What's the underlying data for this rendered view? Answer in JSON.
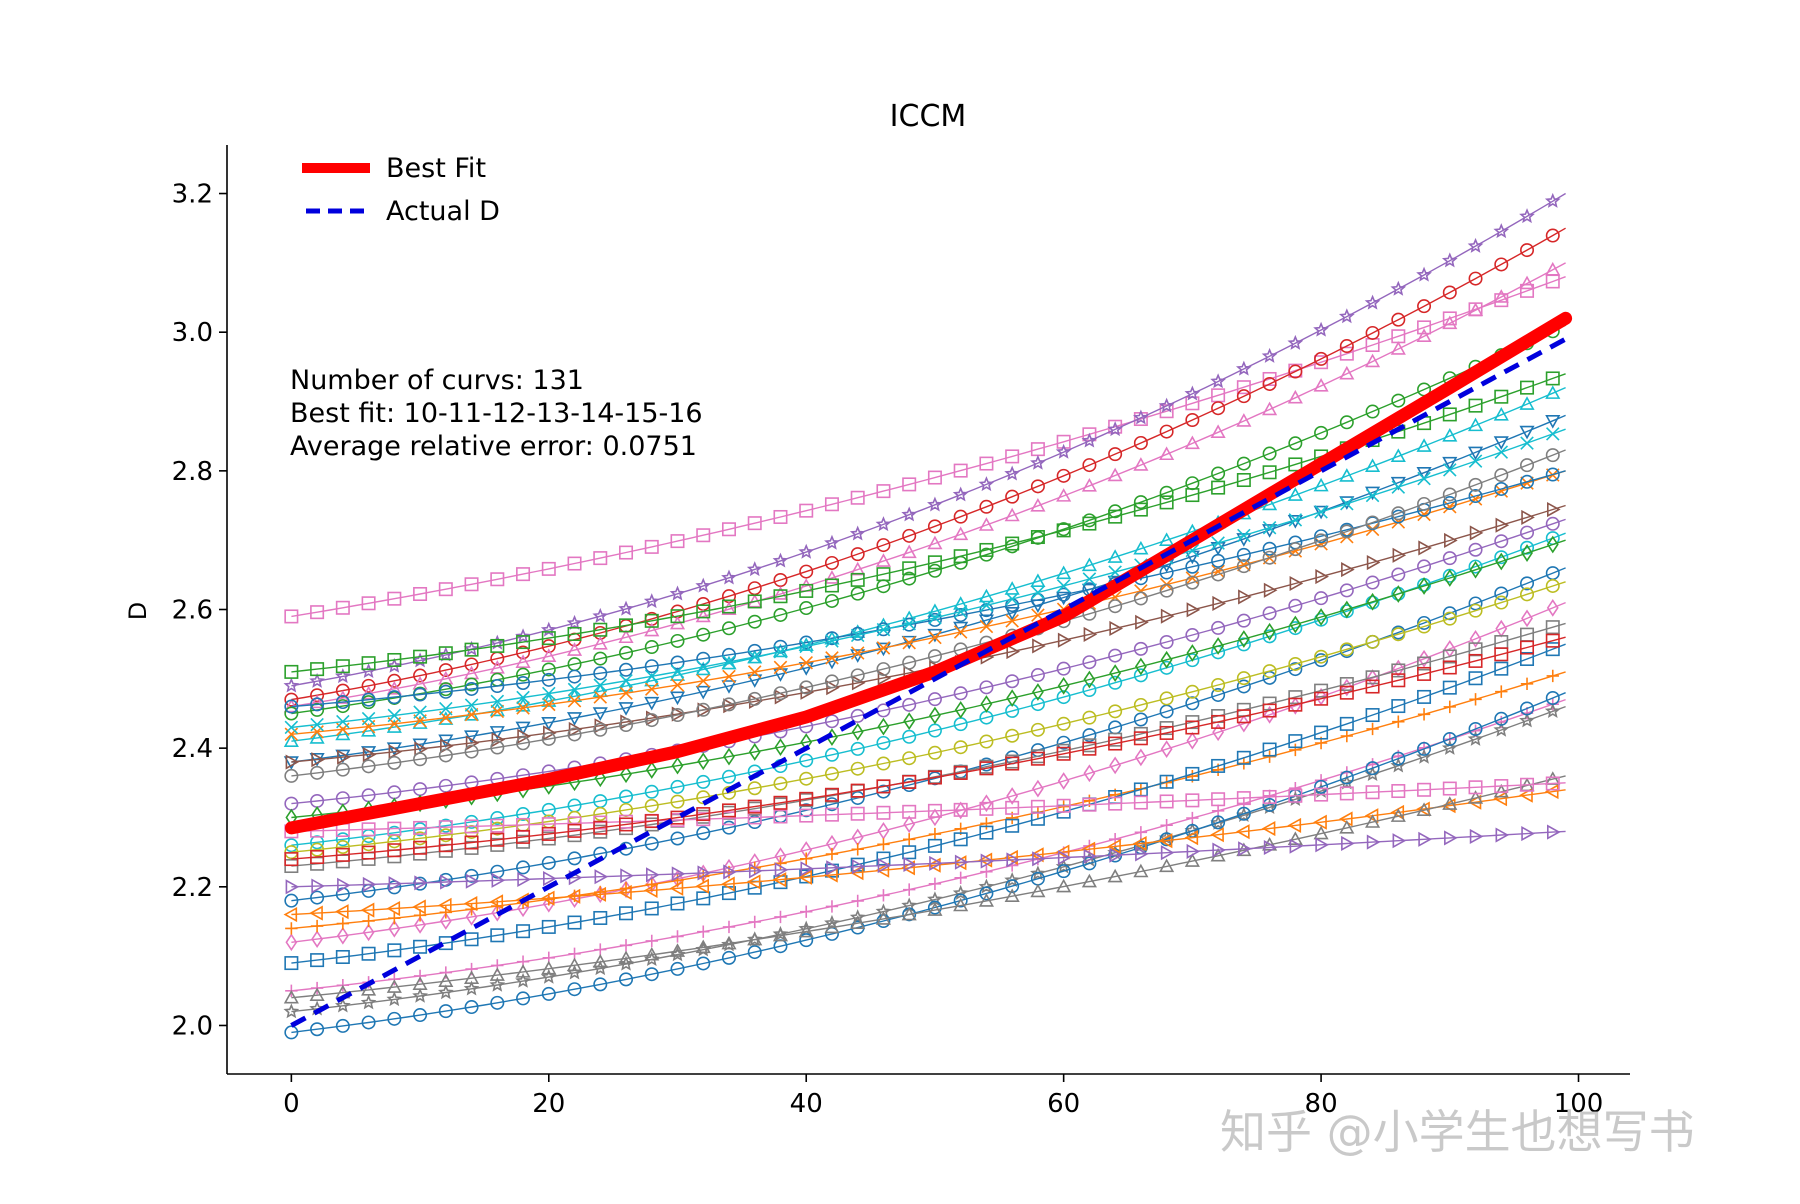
{
  "chart_data": {
    "type": "line",
    "title": "ICCM",
    "xlabel": "",
    "ylabel": "D",
    "xlim": [
      -5,
      104
    ],
    "ylim": [
      1.93,
      3.27
    ],
    "xticks": [
      0,
      20,
      40,
      60,
      80,
      100
    ],
    "yticks": [
      2.0,
      2.2,
      2.4,
      2.6,
      2.8,
      3.0,
      3.2
    ],
    "xtick_labels": [
      "0",
      "20",
      "40",
      "60",
      "80",
      "100"
    ],
    "ytick_labels": [
      "2.0",
      "2.2",
      "2.4",
      "2.6",
      "2.8",
      "3.0",
      "3.2"
    ],
    "x_range": [
      0,
      99
    ],
    "grid": false,
    "legend_position": "top-left",
    "legend": [
      {
        "label": "Best Fit",
        "color": "#ff0000",
        "style": "solid"
      },
      {
        "label": "Actual D",
        "color": "#0000dd",
        "style": "dashed"
      }
    ],
    "annotation_lines": [
      "Number of curvs: 131",
      "Best fit: 10-11-12-13-14-15-16",
      "Average relative error: 0.0751"
    ],
    "highlight_series": [
      {
        "name": "Best Fit",
        "color": "#ff0000",
        "x": [
          0,
          10,
          20,
          30,
          40,
          50,
          60,
          70,
          80,
          90,
          99
        ],
        "y": [
          2.285,
          2.32,
          2.355,
          2.395,
          2.445,
          2.51,
          2.59,
          2.7,
          2.81,
          2.92,
          3.02
        ]
      },
      {
        "name": "Actual D",
        "color": "#0000dd",
        "x": [
          0,
          10,
          20,
          30,
          40,
          50,
          60,
          70,
          80,
          90,
          99
        ],
        "y": [
          2.0,
          2.1,
          2.2,
          2.3,
          2.4,
          2.5,
          2.6,
          2.7,
          2.8,
          2.9,
          2.99
        ]
      }
    ],
    "series": [
      {
        "name": "c01",
        "color": "#e377c2",
        "marker": "square",
        "y0": 2.59,
        "y1": 3.08,
        "curve": 0.7
      },
      {
        "name": "c02",
        "color": "#9467bd",
        "marker": "star",
        "y0": 2.49,
        "y1": 3.2,
        "curve": 1.0
      },
      {
        "name": "c03",
        "color": "#d62728",
        "marker": "circle",
        "y0": 2.47,
        "y1": 3.15,
        "curve": 1.0
      },
      {
        "name": "c04",
        "color": "#e377c2",
        "marker": "triangle-up",
        "y0": 2.46,
        "y1": 3.1,
        "curve": 1.0
      },
      {
        "name": "c05",
        "color": "#2ca02c",
        "marker": "square",
        "y0": 2.51,
        "y1": 2.94,
        "curve": 1.0
      },
      {
        "name": "c06",
        "color": "#2ca02c",
        "marker": "circle",
        "y0": 2.45,
        "y1": 3.01,
        "curve": 1.0
      },
      {
        "name": "c07",
        "color": "#17becf",
        "marker": "triangle-up",
        "y0": 2.41,
        "y1": 2.92,
        "curve": 1.0
      },
      {
        "name": "c08",
        "color": "#1f77b4",
        "marker": "triangle-down",
        "y0": 2.38,
        "y1": 2.88,
        "curve": 1.0
      },
      {
        "name": "c09",
        "color": "#8c564b",
        "marker": "triangle-right",
        "y0": 2.38,
        "y1": 2.75,
        "curve": 1.0
      },
      {
        "name": "c10",
        "color": "#ff7f0e",
        "marker": "x",
        "y0": 2.42,
        "y1": 2.8,
        "curve": 1.0
      },
      {
        "name": "c11",
        "color": "#1f77b4",
        "marker": "circle",
        "y0": 2.46,
        "y1": 2.8,
        "curve": 1.0
      },
      {
        "name": "c12",
        "color": "#7f7f7f",
        "marker": "circle",
        "y0": 2.36,
        "y1": 2.83,
        "curve": 1.0
      },
      {
        "name": "c13",
        "color": "#17becf",
        "marker": "circle",
        "y0": 2.26,
        "y1": 2.71,
        "curve": 1.0
      },
      {
        "name": "c14",
        "color": "#1f77b4",
        "marker": "circle",
        "y0": 2.18,
        "y1": 2.66,
        "curve": 1.0
      },
      {
        "name": "c15",
        "color": "#e377c2",
        "marker": "diamond",
        "y0": 2.12,
        "y1": 2.61,
        "curve": 1.0
      },
      {
        "name": "c16",
        "color": "#9467bd",
        "marker": "circle",
        "y0": 2.32,
        "y1": 2.73,
        "curve": 1.0
      },
      {
        "name": "c17",
        "color": "#bcbd22",
        "marker": "circle",
        "y0": 2.25,
        "y1": 2.64,
        "curve": 1.0
      },
      {
        "name": "c18",
        "color": "#7f7f7f",
        "marker": "square",
        "y0": 2.23,
        "y1": 2.58,
        "curve": 1.0
      },
      {
        "name": "c19",
        "color": "#ff7f0e",
        "marker": "plus",
        "y0": 2.14,
        "y1": 2.51,
        "curve": 1.0
      },
      {
        "name": "c20",
        "color": "#1f77b4",
        "marker": "square",
        "y0": 2.09,
        "y1": 2.55,
        "curve": 1.0
      },
      {
        "name": "c21",
        "color": "#e377c2",
        "marker": "plus",
        "y0": 2.05,
        "y1": 2.47,
        "curve": 1.0
      },
      {
        "name": "c22",
        "color": "#7f7f7f",
        "marker": "star",
        "y0": 2.02,
        "y1": 2.46,
        "curve": 1.0
      },
      {
        "name": "c23",
        "color": "#1f77b4",
        "marker": "circle",
        "y0": 1.99,
        "y1": 2.48,
        "curve": 1.0
      },
      {
        "name": "c24",
        "color": "#ff7f0e",
        "marker": "triangle-left",
        "y0": 2.16,
        "y1": 2.34,
        "curve": 0.8
      },
      {
        "name": "c25",
        "color": "#7f7f7f",
        "marker": "triangle-up",
        "y0": 2.04,
        "y1": 2.36,
        "curve": 0.8
      },
      {
        "name": "c26",
        "color": "#9467bd",
        "marker": "triangle-right",
        "y0": 2.2,
        "y1": 2.28,
        "curve": 0.6
      },
      {
        "name": "c27",
        "color": "#e377c2",
        "marker": "square",
        "y0": 2.28,
        "y1": 2.35,
        "curve": 0.6
      },
      {
        "name": "c28",
        "color": "#d62728",
        "marker": "square",
        "y0": 2.24,
        "y1": 2.56,
        "curve": 1.0
      },
      {
        "name": "c29",
        "color": "#2ca02c",
        "marker": "diamond",
        "y0": 2.3,
        "y1": 2.7,
        "curve": 1.0
      },
      {
        "name": "c30",
        "color": "#17becf",
        "marker": "x",
        "y0": 2.43,
        "y1": 2.86,
        "curve": 1.0
      }
    ]
  },
  "watermark": "知乎 @小学生也想写书"
}
